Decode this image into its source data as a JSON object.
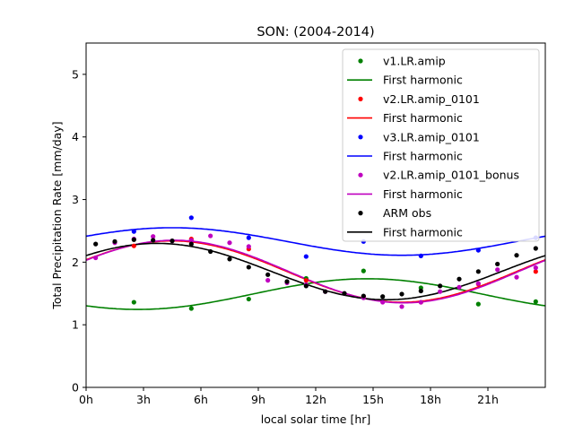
{
  "chart_data": {
    "type": "scatter",
    "title": "SON: (2004-2014)",
    "xlabel": "local solar time [hr]",
    "ylabel": "Total Precipitation Rate [mm/day]",
    "xlim": [
      0,
      24
    ],
    "ylim": [
      0,
      5.5
    ],
    "x_ticks": [
      0,
      3,
      6,
      9,
      12,
      15,
      18,
      21
    ],
    "x_tick_labels": [
      "0h",
      "3h",
      "6h",
      "9h",
      "12h",
      "15h",
      "18h",
      "21h"
    ],
    "y_ticks": [
      0,
      1,
      2,
      3,
      4,
      5
    ],
    "y_tick_labels": [
      "0",
      "1",
      "2",
      "3",
      "4",
      "5"
    ],
    "grid": false,
    "legend_position": "top-right",
    "series": [
      {
        "name": "v1.LR.amip",
        "color": "#008000",
        "x": [
          2.5,
          5.5,
          8.5,
          11.5,
          14.5,
          17.5,
          20.5,
          23.5
        ],
        "y": [
          1.36,
          1.26,
          1.41,
          1.74,
          1.86,
          1.59,
          1.33,
          1.37
        ],
        "harmonic_label": "First harmonic",
        "harmonic": {
          "mean": 1.49,
          "amplitude": 0.245,
          "peak_hour": 14.7
        }
      },
      {
        "name": "v2.LR.amip_0101",
        "color": "#ff0000",
        "x": [
          2.5,
          5.5,
          8.5,
          11.5,
          14.5,
          17.5,
          20.5,
          23.5
        ],
        "y": [
          2.26,
          2.37,
          2.21,
          1.71,
          1.45,
          1.36,
          1.65,
          1.85
        ],
        "harmonic_label": "First harmonic",
        "harmonic": {
          "mean": 1.85,
          "amplitude": 0.49,
          "peak_hour": 4.5
        }
      },
      {
        "name": "v3.LR.amip_0101",
        "color": "#0000ff",
        "x": [
          2.5,
          5.5,
          8.5,
          11.5,
          14.5,
          17.5,
          20.5,
          23.5
        ],
        "y": [
          2.49,
          2.71,
          2.39,
          2.09,
          2.33,
          2.1,
          2.19,
          2.39
        ],
        "harmonic_label": "First harmonic",
        "harmonic": {
          "mean": 2.33,
          "amplitude": 0.22,
          "peak_hour": 4.5
        }
      },
      {
        "name": "v2.LR.amip_0101_bonus",
        "color": "#bf00bf",
        "x": [
          0.5,
          1.5,
          2.5,
          3.5,
          4.5,
          5.5,
          6.5,
          7.5,
          8.5,
          9.5,
          10.5,
          11.5,
          12.5,
          13.5,
          14.5,
          15.5,
          16.5,
          17.5,
          18.5,
          19.5,
          20.5,
          21.5,
          22.5,
          23.5
        ],
        "y": [
          2.07,
          2.31,
          2.37,
          2.41,
          2.34,
          2.35,
          2.42,
          2.31,
          2.25,
          1.71,
          1.67,
          1.64,
          1.53,
          1.5,
          1.43,
          1.36,
          1.29,
          1.36,
          1.53,
          1.6,
          1.66,
          1.88,
          1.76,
          1.91
        ],
        "harmonic_label": "First harmonic",
        "harmonic": {
          "mean": 1.85,
          "amplitude": 0.5,
          "peak_hour": 4.6
        }
      },
      {
        "name": "ARM obs",
        "color": "#000000",
        "x": [
          0.5,
          1.5,
          2.5,
          3.5,
          4.5,
          5.5,
          6.5,
          7.5,
          8.5,
          9.5,
          10.5,
          11.5,
          12.5,
          13.5,
          14.5,
          15.5,
          16.5,
          17.5,
          18.5,
          19.5,
          20.5,
          21.5,
          22.5,
          23.5
        ],
        "y": [
          2.29,
          2.33,
          2.36,
          2.35,
          2.34,
          2.29,
          2.17,
          2.05,
          1.92,
          1.8,
          1.69,
          1.62,
          1.53,
          1.5,
          1.46,
          1.45,
          1.49,
          1.54,
          1.62,
          1.73,
          1.85,
          1.97,
          2.11,
          2.22
        ],
        "harmonic_label": "First harmonic",
        "harmonic": {
          "mean": 1.85,
          "amplitude": 0.45,
          "peak_hour": 3.7
        }
      }
    ]
  }
}
